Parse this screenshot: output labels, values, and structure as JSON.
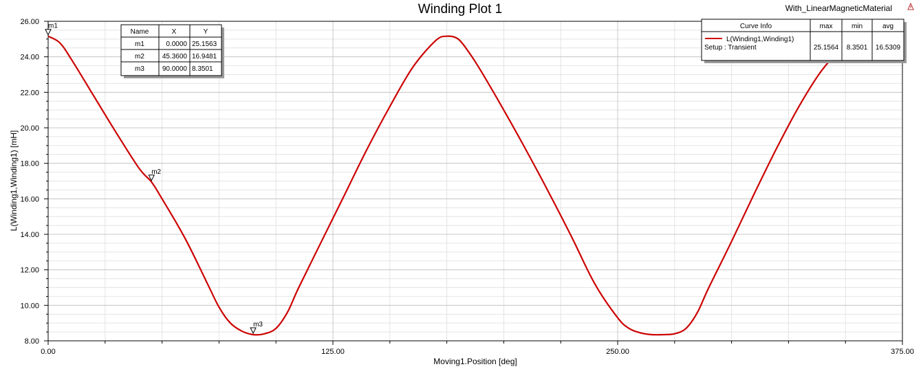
{
  "window": {
    "design_name": "With_LinearMagneticMaterial"
  },
  "chart_data": {
    "type": "line",
    "title": "Winding Plot 1",
    "xlabel": "Moving1.Position [deg]",
    "ylabel": "L(Winding1,Winding1) [mH]",
    "xlim": [
      0,
      375
    ],
    "ylim": [
      8,
      26
    ],
    "x_ticks": [
      "0.00",
      "125.00",
      "250.00",
      "375.00"
    ],
    "y_ticks": [
      "8.00",
      "10.00",
      "12.00",
      "14.00",
      "16.00",
      "18.00",
      "20.00",
      "22.00",
      "24.00",
      "26.00"
    ],
    "grid": true,
    "series": [
      {
        "name": "L(Winding1,Winding1)",
        "color": "#cc0000",
        "x": [
          0,
          5,
          10,
          20,
          30,
          40,
          45.36,
          50,
          60,
          70,
          75,
          80,
          85,
          90,
          95,
          100,
          105,
          110,
          120,
          130,
          140,
          150,
          160,
          170,
          175,
          180,
          185,
          190,
          200,
          210,
          220,
          230,
          240,
          250,
          255,
          260,
          265,
          270,
          275,
          280,
          285,
          290,
          300,
          310,
          320,
          330,
          340,
          350,
          360
        ],
        "y": [
          25.16,
          24.8,
          23.9,
          21.8,
          19.7,
          17.7,
          16.95,
          16.0,
          13.8,
          11.2,
          9.9,
          9.0,
          8.55,
          8.35,
          8.4,
          8.7,
          9.6,
          11.0,
          13.6,
          16.2,
          18.8,
          21.2,
          23.4,
          24.9,
          25.16,
          25.0,
          24.2,
          23.2,
          21.0,
          18.7,
          16.3,
          13.8,
          11.2,
          9.3,
          8.7,
          8.45,
          8.35,
          8.35,
          8.4,
          8.7,
          9.6,
          11.0,
          13.6,
          16.3,
          18.9,
          21.3,
          23.3,
          24.6,
          25.16
        ]
      }
    ],
    "markers": {
      "headers": [
        "Name",
        "X",
        "Y"
      ],
      "rows": [
        {
          "name": "m1",
          "x": "0.0000",
          "y": "25.1563"
        },
        {
          "name": "m2",
          "x": "45.3600",
          "y": "16.9481"
        },
        {
          "name": "m3",
          "x": "90.0000",
          "y": "8.3501"
        }
      ],
      "points": [
        {
          "name": "m1",
          "x": 0,
          "y": 25.16
        },
        {
          "name": "m2",
          "x": 45.36,
          "y": 16.95
        },
        {
          "name": "m3",
          "x": 90,
          "y": 8.35
        }
      ]
    },
    "curve_info": {
      "headers": [
        "Curve Info",
        "max",
        "min",
        "avg"
      ],
      "curve_name": "L(Winding1,Winding1)",
      "setup": "Setup : Transient",
      "max": "25.1564",
      "min": "8.3501",
      "avg": "16.5309"
    }
  }
}
